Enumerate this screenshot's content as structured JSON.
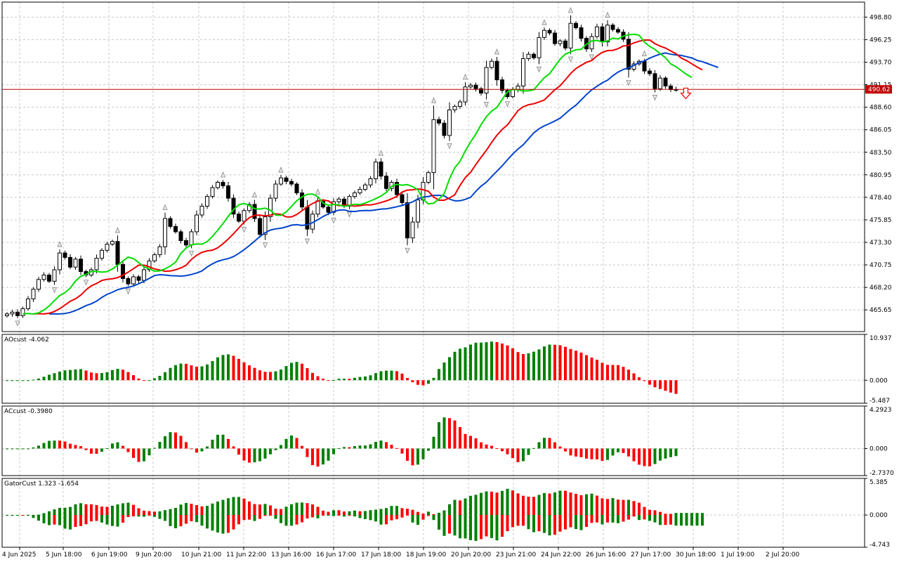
{
  "chart_data": {
    "type": "candlestick",
    "price_axis": {
      "ticks": [
        "498.80",
        "496.25",
        "493.70",
        "491.15",
        "488.60",
        "486.05",
        "483.50",
        "480.95",
        "478.40",
        "475.85",
        "473.30",
        "470.75",
        "468.20",
        "465.65"
      ],
      "tick_values": [
        498.8,
        496.25,
        493.7,
        491.15,
        488.6,
        486.05,
        483.5,
        480.95,
        478.4,
        475.85,
        473.3,
        470.75,
        468.2,
        465.65
      ],
      "range": [
        463.2,
        500.5
      ],
      "current_price": "490.62",
      "current_value": 490.62
    },
    "time_axis": [
      "4 Jun 2025",
      "5 Jun 18:00",
      "6 Jun 19:00",
      "9 Jun 20:00",
      "10 Jun 21:00",
      "11 Jun 22:00",
      "13 Jun 16:00",
      "16 Jun 17:00",
      "17 Jun 18:00",
      "18 Jun 19:00",
      "20 Jun 20:00",
      "23 Jun 21:00",
      "24 Jun 22:00",
      "26 Jun 16:00",
      "27 Jun 17:00",
      "30 Jun 18:00",
      "1 Jul 19:00",
      "2 Jul 20:00"
    ],
    "closes": [
      465.2,
      465.4,
      465.0,
      465.8,
      466.9,
      468.0,
      469.1,
      469.6,
      468.9,
      470.2,
      472.1,
      471.6,
      470.5,
      471.4,
      470.0,
      469.6,
      470.2,
      471.5,
      472.4,
      473.1,
      473.4,
      470.8,
      469.2,
      468.6,
      469.4,
      469.0,
      470.2,
      471.2,
      471.9,
      472.8,
      476.0,
      475.1,
      474.5,
      473.5,
      473.0,
      474.5,
      476.4,
      477.4,
      478.5,
      479.5,
      480.1,
      479.7,
      478.3,
      476.5,
      475.7,
      476.9,
      477.6,
      476.0,
      474.2,
      476.2,
      478.3,
      479.9,
      480.6,
      480.2,
      479.9,
      478.9,
      477.3,
      474.8,
      476.5,
      478.0,
      477.3,
      476.7,
      477.9,
      478.2,
      477.4,
      478.5,
      478.9,
      479.3,
      479.8,
      480.5,
      482.4,
      480.8,
      479.4,
      480.1,
      478.7,
      477.8,
      473.8,
      475.6,
      478.1,
      480.1,
      481.2,
      487.2,
      486.8,
      485.4,
      488.3,
      488.7,
      489.2,
      490.9,
      491.1,
      490.7,
      490.2,
      493.1,
      493.8,
      491.7,
      490.5,
      489.8,
      490.6,
      491.0,
      494.1,
      494.6,
      494.2,
      496.5,
      497.3,
      497.0,
      495.8,
      496.1,
      495.3,
      498.1,
      497.6,
      496.4,
      495.2,
      496.6,
      497.7,
      496.0,
      497.9,
      497.4,
      497.1,
      496.3,
      492.9,
      493.5,
      493.8,
      492.7,
      492.4,
      490.7,
      491.9,
      491.0,
      490.6,
      490.6
    ]
  },
  "indicators": {
    "ao": {
      "label": "AOcust -4.062",
      "ticks": [
        "10.937",
        "0.000",
        "-5.487"
      ],
      "tick_values": [
        10.937,
        0,
        -5.487
      ]
    },
    "ac": {
      "label": "ACcust -0.3980",
      "ticks": [
        "4.2923",
        "0.000",
        "-2.7370"
      ],
      "tick_values": [
        4.2923,
        0,
        -2.737
      ]
    },
    "gator": {
      "label": "GatorCust 1.323 -1.654",
      "ticks": [
        "5.385",
        "0.000",
        "-4.743"
      ],
      "tick_values": [
        5.385,
        0,
        -4.743
      ]
    }
  },
  "colors": {
    "bull": "#008000",
    "bear": "#ff0000",
    "jaw": "#0044cc",
    "teeth": "#ee0000",
    "lips": "#00dd00",
    "price_line": "#c00000",
    "grid": "#c8c8c8"
  }
}
